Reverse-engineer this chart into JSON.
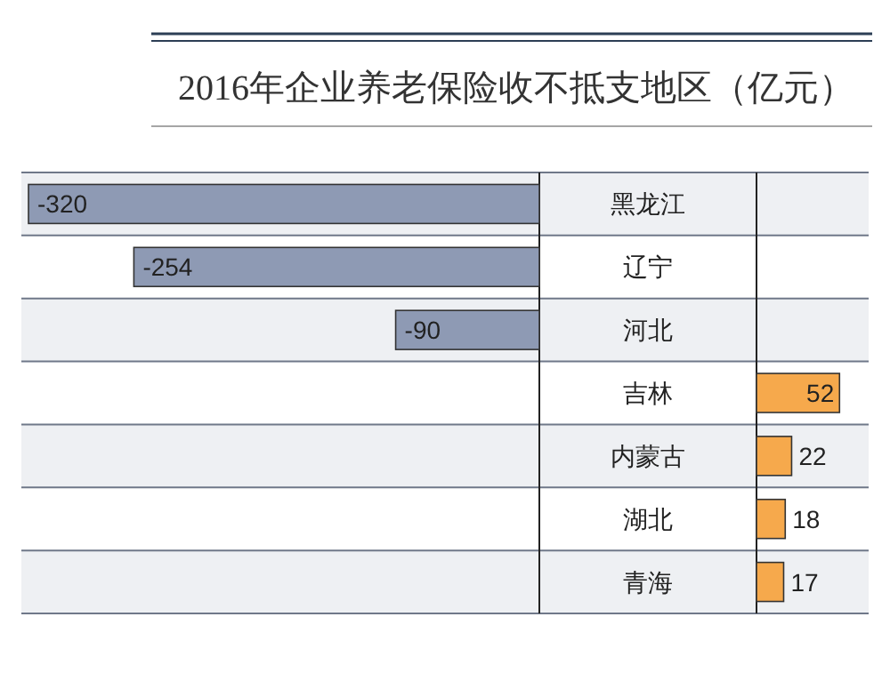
{
  "chart_data": [
    {
      "type": "bar",
      "orientation": "horizontal",
      "title": "2016年企业养老保险收不抵支地区（亿元）",
      "categories": [
        "黑龙江",
        "辽宁",
        "河北",
        "吉林",
        "内蒙古",
        "湖北",
        "青海"
      ],
      "values": [
        -320,
        -254,
        -90,
        null,
        null,
        null,
        null
      ],
      "color": "#8e9ab4",
      "data_labels": true
    },
    {
      "type": "bar",
      "orientation": "horizontal",
      "categories": [
        null,
        null,
        null,
        null,
        null,
        null,
        null
      ],
      "values": [
        null,
        null,
        null,
        52,
        22,
        18,
        17
      ],
      "color": "#f6a94c",
      "data_labels": true
    }
  ]
}
